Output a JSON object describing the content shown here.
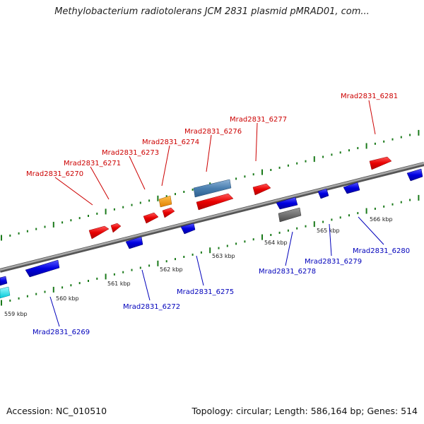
{
  "title": "Methylobacterium radiotolerans JCM 2831 plasmid pMRAD01, com...",
  "footer": {
    "accession": "Accession: NC_010510",
    "summary": "Topology: circular; Length: 586,164 bp; Genes: 514"
  },
  "colors": {
    "forward_label": "#cc0000",
    "reverse_label": "#0000bb",
    "tick": "#1a7a1a",
    "backbone": "#777777"
  },
  "scale_labels": [
    "559 kbp",
    "560 kbp",
    "561 kbp",
    "562 kbp",
    "563 kbp",
    "564 kbp",
    "565 kbp",
    "566 kbp"
  ],
  "forward_genes": [
    {
      "label": "Mrad2831_6270"
    },
    {
      "label": "Mrad2831_6271"
    },
    {
      "label": "Mrad2831_6273"
    },
    {
      "label": "Mrad2831_6274"
    },
    {
      "label": "Mrad2831_6276"
    },
    {
      "label": "Mrad2831_6277"
    },
    {
      "label": "Mrad2831_6281"
    }
  ],
  "reverse_genes": [
    {
      "label": "Mrad2831_6269"
    },
    {
      "label": "Mrad2831_6272"
    },
    {
      "label": "Mrad2831_6275"
    },
    {
      "label": "Mrad2831_6278"
    },
    {
      "label": "Mrad2831_6279"
    },
    {
      "label": "Mrad2831_6280"
    }
  ]
}
